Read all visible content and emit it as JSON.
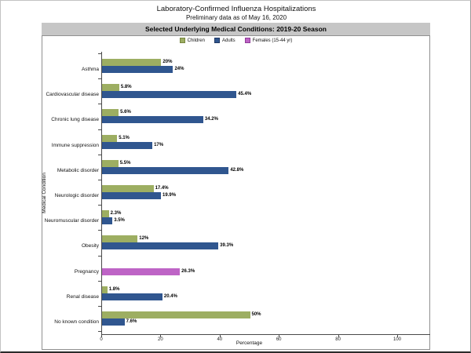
{
  "page": {
    "title": "Laboratory-Confirmed Influenza Hospitalizations",
    "subtitle": "Preliminary data as of May 16, 2020",
    "banner": "Selected Underlying Medical Conditions: 2019-20 Season"
  },
  "legend": [
    {
      "label": "Children",
      "color": "#9dae62",
      "border": "#77863f"
    },
    {
      "label": "Adults",
      "color": "#30568f",
      "border": "#1f3864"
    },
    {
      "label": "Females (15-44 yr)",
      "color": "#be64c6",
      "border": "#8e3d96"
    }
  ],
  "chart_data": {
    "type": "bar",
    "orientation": "horizontal",
    "title": "Selected Underlying Medical Conditions: 2019-20 Season",
    "xlabel": "Percentage",
    "ylabel": "Medical Condition",
    "xlim": [
      0,
      100
    ],
    "xticks": [
      0,
      20,
      40,
      60,
      80,
      100
    ],
    "grid": false,
    "legend_position": "top",
    "categories": [
      "Asthma",
      "Cardiovascular disease",
      "Chronic lung disease",
      "Immune suppression",
      "Metabolic disorder",
      "Neurologic disorder",
      "Neuromuscular disorder",
      "Obesity",
      "Pregnancy",
      "Renal disease",
      "No known condition"
    ],
    "series": [
      {
        "name": "Children",
        "color": "#9dae62",
        "slot": 0,
        "values": [
          20,
          5.8,
          5.6,
          5.1,
          5.5,
          17.4,
          2.3,
          12,
          null,
          1.8,
          50
        ],
        "labels": [
          "20%",
          "5.8%",
          "5.6%",
          "5.1%",
          "5.5%",
          "17.4%",
          "2.3%",
          "12%",
          "",
          "1.8%",
          "50%"
        ]
      },
      {
        "name": "Adults",
        "color": "#30568f",
        "slot": 1,
        "values": [
          24,
          45.4,
          34.2,
          17,
          42.8,
          19.9,
          3.5,
          39.3,
          null,
          20.4,
          7.6
        ],
        "labels": [
          "24%",
          "45.4%",
          "34.2%",
          "17%",
          "42.8%",
          "19.9%",
          "3.5%",
          "39.3%",
          "",
          "20.4%",
          "7.6%"
        ]
      },
      {
        "name": "Females (15-44 yr)",
        "color": "#be64c6",
        "slot": 1,
        "values": [
          null,
          null,
          null,
          null,
          null,
          null,
          null,
          null,
          26.3,
          null,
          null
        ],
        "labels": [
          "",
          "",
          "",
          "",
          "",
          "",
          "",
          "",
          "26.3%",
          "",
          ""
        ]
      }
    ]
  }
}
